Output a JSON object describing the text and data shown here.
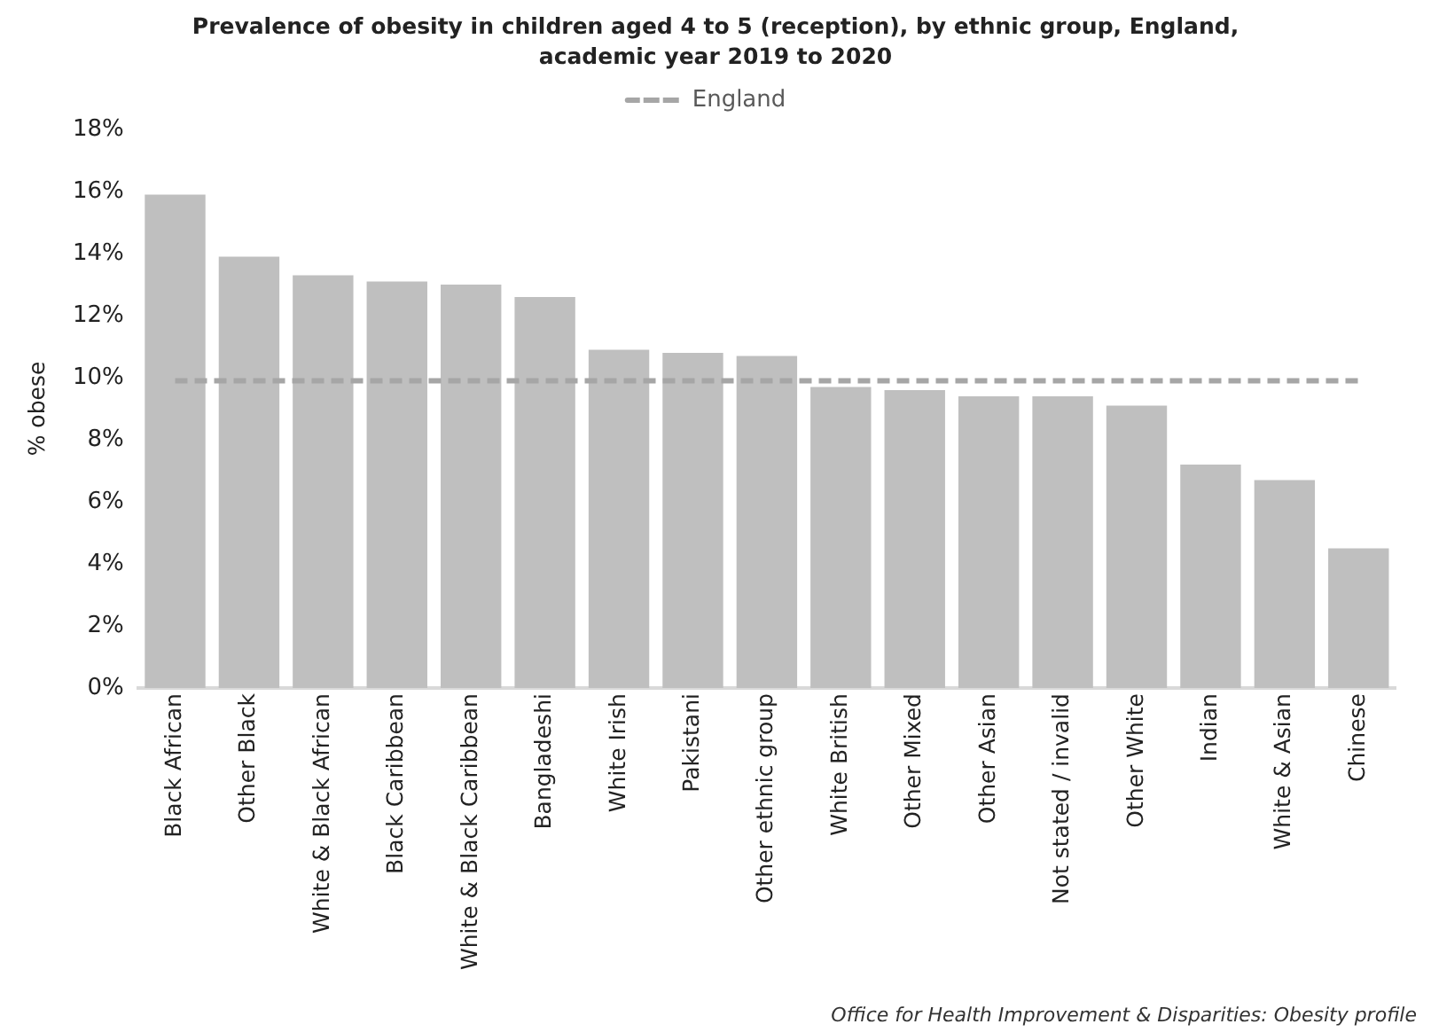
{
  "chart_data": {
    "type": "bar",
    "title": "Prevalence of obesity in children aged 4 to 5 (reception), by ethnic group, England, academic year 2019 to 2020",
    "ylabel": "% obese",
    "categories": [
      "Black African",
      "Other Black",
      "White & Black African",
      "Black Caribbean",
      "White & Black Caribbean",
      "Bangladeshi",
      "White Irish",
      "Pakistani",
      "Other ethnic group",
      "White British",
      "Other Mixed",
      "Other Asian",
      "Not stated / invalid",
      "Other White",
      "Indian",
      "White & Asian",
      "Chinese"
    ],
    "series": [
      {
        "color": "#bfbfbf",
        "values": [
          15.9,
          13.9,
          13.3,
          13.1,
          13.0,
          12.6,
          10.9,
          10.8,
          10.7,
          9.7,
          9.6,
          9.4,
          9.4,
          9.1,
          7.2,
          6.7,
          4.5
        ]
      },
      {
        "type": "line",
        "name": "England",
        "color": "#a6a6a6",
        "line_style": "dashed",
        "marker": "none",
        "values": [
          9.9,
          9.9,
          9.9,
          9.9,
          9.9,
          9.9,
          9.9,
          9.9,
          9.9,
          9.9,
          9.9,
          9.9,
          9.9,
          9.9,
          9.9,
          9.9,
          9.9
        ]
      }
    ],
    "ylim": [
      0,
      18
    ],
    "yticks": [
      {
        "value": 0,
        "label": "0%"
      },
      {
        "value": 2,
        "label": "2%"
      },
      {
        "value": 4,
        "label": "4%"
      },
      {
        "value": 6,
        "label": "6%"
      },
      {
        "value": 8,
        "label": "8%"
      },
      {
        "value": 10,
        "label": "10%"
      },
      {
        "value": 12,
        "label": "12%"
      },
      {
        "value": 14,
        "label": "14%"
      },
      {
        "value": 16,
        "label": "16%"
      },
      {
        "value": 18,
        "label": "18%"
      }
    ],
    "grid": false,
    "legend": "top",
    "annotations": [
      "Office for Health Improvement & Disparities: Obesity profile"
    ]
  }
}
